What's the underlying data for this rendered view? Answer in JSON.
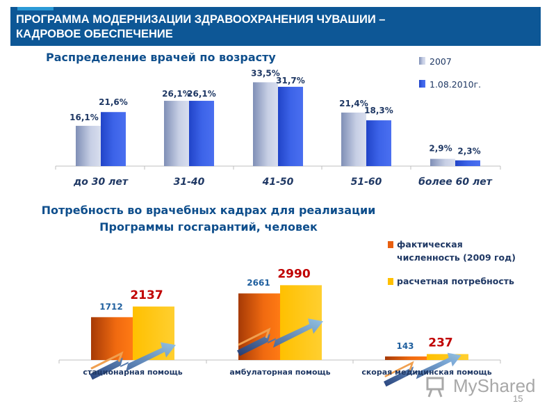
{
  "header": {
    "title": "ПРОГРАММА МОДЕРНИЗАЦИИ ЗДРАВООХРАНЕНИЯ ЧУВАШИИ –\nКАДРОВОЕ ОБЕСПЕЧЕНИЕ"
  },
  "page_number": "15",
  "watermark": {
    "text": "MyShared"
  },
  "colors": {
    "header_bg": "#0d5796",
    "title_text": "#0e4e8c",
    "series_2007": "#aab6d2",
    "series_2010": "#2f56dc",
    "bar_actual": "#e85f10",
    "bar_required": "#ffc000",
    "label_red": "#c00000"
  },
  "chart_data": [
    {
      "type": "bar",
      "title": "Распределение врачей  по возрасту",
      "categories": [
        "до 30 лет",
        "31-40",
        "41-50",
        "51-60",
        "более 60 лет"
      ],
      "series": [
        {
          "name": "2007",
          "values": [
            16.1,
            26.1,
            33.5,
            21.4,
            2.9
          ],
          "labels": [
            "16,1%",
            "26,1%",
            "33,5%",
            "21,4%",
            "2,9%"
          ]
        },
        {
          "name": "1.08.2010г.",
          "values": [
            21.6,
            26.1,
            31.7,
            18.3,
            2.3
          ],
          "labels": [
            "21,6%",
            "26,1%",
            "31,7%",
            "18,3%",
            "2,3%"
          ]
        }
      ],
      "ylim": [
        0,
        35
      ],
      "legend": "top-right"
    },
    {
      "type": "bar",
      "title": "Потребность во врачебных кадрах для  реализации\nПрограммы госгарантий, человек",
      "categories": [
        "стационарная помощь",
        "амбулаторная помощь",
        "скорая медицинская помощь"
      ],
      "series": [
        {
          "name": "фактическая\nчисленность (2009 год)",
          "values": [
            1712,
            2661,
            143
          ]
        },
        {
          "name": "расчетная потребность",
          "values": [
            2137,
            2990,
            237
          ]
        }
      ],
      "ylim": [
        0,
        3300
      ],
      "legend": "right"
    }
  ]
}
